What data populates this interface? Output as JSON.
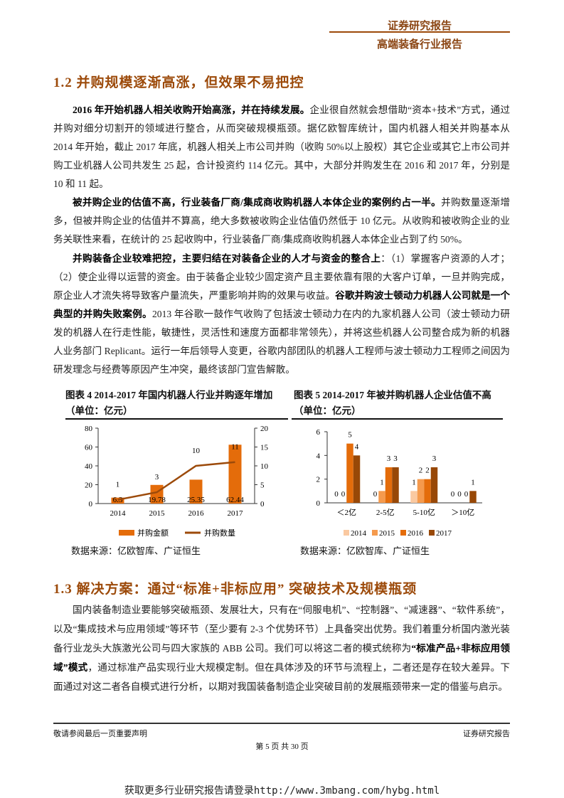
{
  "header": {
    "line1": "证券研究报告",
    "line2": "高端装备行业报告"
  },
  "section_1_2": {
    "title": "1.2 并购规模逐渐高涨，但效果不易把控",
    "p1": [
      {
        "text": "2016 年开始机器人相关收购开始高涨，并在持续发展。",
        "bold": true
      },
      {
        "text": "企业很自然就会想借助“资本+技术”方式，通过并购对细分切割开的领域进行整合，从而突破规模瓶颈。据亿欧智库统计，国内机器人相关并购基本从 2014 年开始，截止 2017 年底，机器人相关上市公司并购（收购 50%以上股权）其它企业或其它上市公司并购工业机器人公司共发生 25 起，合计投资约 114 亿元。其中，大部分并购发生在 2016 和 2017 年，分别是 10 和 11 起。",
        "bold": false
      }
    ],
    "p2": [
      {
        "text": "被并购企业的估值不高，行业装备厂商/集成商收购机器人本体企业的案例约占一半。",
        "bold": true
      },
      {
        "text": "并购数量逐渐增多，但被并购企业的估值并不算高，绝大多数被收购企业估值仍然低于 10 亿元。从收购和被收购企业的业务关联性来看，在统计的 25 起收购中，行业装备厂商/集成商收购机器人本体企业占到了约 50%。",
        "bold": false
      }
    ],
    "p3": [
      {
        "text": "并购装备企业较难把控，主要归结在对装备企业的人才与资金的整合上",
        "bold": true
      },
      {
        "text": "：（1）掌握客户资源的人才；（2）使企业得以运营的资金。由于装备企业较少固定资产且主要依靠有限的大客户订单，一旦并购完成，原企业人才流失将导致客户量流失，严重影响并购的效果与收益。",
        "bold": false
      },
      {
        "text": "谷歌并购波士顿动力机器人公司就是一个典型的并购失败案例。",
        "bold": true
      },
      {
        "text": "2013 年谷歌一鼓作气收购了包括波士顿动力在内的九家机器人公司（波士顿动力研发的机器人在行走性能，敏捷性，灵活性和速度方面都非常领先），并将这些机器人公司整合成为新的机器人业务部门 Replicant。运行一年后领导人变更，谷歌内部团队的机器人工程师与波士顿动力工程师之间因为研发理念与经费等原因产生冲突，最终该部门宣告解散。",
        "bold": false
      }
    ]
  },
  "figure4": {
    "title": "图表 4 2014-2017 年国内机器人行业并购逐年增加",
    "unit": "（单位：亿元）",
    "source": "数据来源：亿欧智库、广证恒生"
  },
  "figure5": {
    "title": "图表 5 2014-2017 年被并购机器人企业估值不高",
    "unit": "（单位：亿元）",
    "source": "数据来源：亿欧智库、广证恒生"
  },
  "chart_data": [
    {
      "type": "bar+line",
      "categories": [
        "2014",
        "2015",
        "2016",
        "2017"
      ],
      "series": [
        {
          "name": "并购金额",
          "type": "bar",
          "axis": "left",
          "values": [
            6.3,
            19.78,
            25.35,
            62.44
          ],
          "color": "#E46C0A"
        },
        {
          "name": "并购数量",
          "type": "line",
          "axis": "right",
          "values": [
            1,
            3,
            10,
            11
          ],
          "color": "#9C4A0A"
        }
      ],
      "ylim_left": [
        0,
        80
      ],
      "yticks_left": [
        0,
        20,
        40,
        60,
        80
      ],
      "ylim_right": [
        0,
        20
      ],
      "yticks_right": [
        0,
        5,
        10,
        15,
        20
      ],
      "grid": false,
      "legend": "bottom"
    },
    {
      "type": "bar",
      "categories": [
        "＜2亿",
        "2-5亿",
        "5-10亿",
        "＞10亿"
      ],
      "series": [
        {
          "name": "2014",
          "values": [
            0,
            0,
            1,
            0
          ],
          "color": "#FAC9A1"
        },
        {
          "name": "2015",
          "values": [
            0,
            1,
            2,
            0
          ],
          "color": "#F59A4D"
        },
        {
          "name": "2016",
          "values": [
            5,
            3,
            2,
            0
          ],
          "color": "#E46C0A"
        },
        {
          "name": "2017",
          "values": [
            4,
            3,
            3,
            1
          ],
          "color": "#984807"
        }
      ],
      "ylim": [
        0,
        6
      ],
      "yticks": [
        0,
        2,
        4,
        6
      ],
      "grid": false,
      "legend": "bottom"
    }
  ],
  "section_1_3": {
    "title": "1.3 解决方案：通过“标准+非标应用” 突破技术及规模瓶颈",
    "p1": [
      {
        "text": "国内装备制造业要能够突破瓶颈、发展壮大，只有在“伺服电机”、“控制器”、“减速器”、“软件系统”，以及“集成技术与应用领域”等环节（至少要有 2-3 个优势环节）上具备突出优势。我们着重分析国内激光装备行业龙头大族激光公司与四大家族的 ABB 公司。我们可以将这二者的模式统称为",
        "bold": false
      },
      {
        "text": "“标准产品+非标应用领域”模式",
        "bold": true
      },
      {
        "text": "，通过标准产品实现行业大规模定制。但在具体涉及的环节与流程上，二者还是存在较大差异。下面通过对这二者各自模式进行分析，以期对我国装备制造企业突破目前的发展瓶颈带来一定的借鉴与启示。",
        "bold": false
      }
    ]
  },
  "footer": {
    "disclaimer": "敬请参阅最后一页重要声明",
    "report_type": "证券研究报告",
    "page": "第 5 页 共 30 页",
    "promo": "获取更多行业研究报告请登录http://www.3mbang.com/hybg.html"
  }
}
